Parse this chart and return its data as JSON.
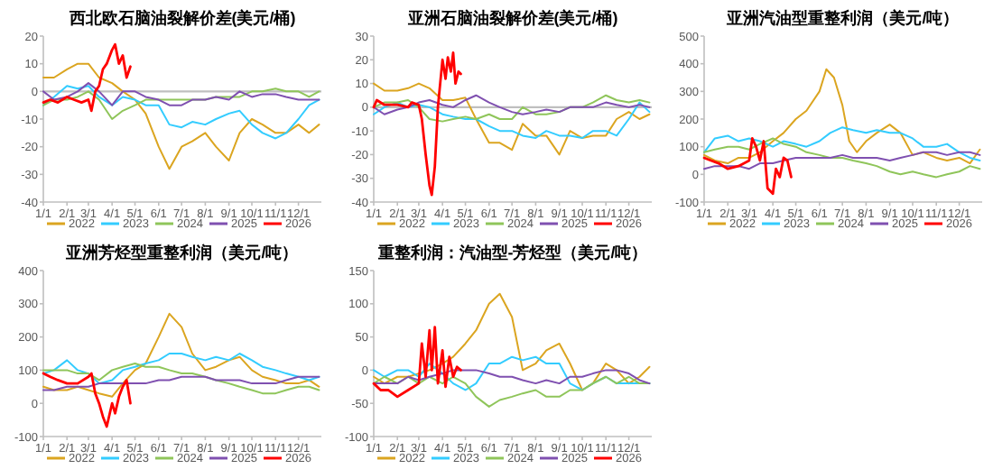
{
  "chart_data": [
    {
      "type": "line",
      "title": "西北欧石脑油裂解价差(美元/桶)",
      "legend": "bottom",
      "line_style": "solid",
      "x": [
        "--01-01",
        "--01-15",
        "--02-01",
        "--02-15",
        "--03-01",
        "--03-15",
        "--04-01",
        "--04-15",
        "--05-01",
        "--05-15",
        "--06-01",
        "--06-15",
        "--07-01",
        "--07-15",
        "--08-01",
        "--08-15",
        "--09-01",
        "--09-15",
        "--10-01",
        "--10-15",
        "--11-01",
        "--11-15",
        "--12-01",
        "--12-15",
        "--12-28"
      ],
      "xlim": [
        "--01-01",
        "--12-31"
      ],
      "xticks": [
        {
          "value": "--01-01",
          "label": "1/1"
        },
        {
          "value": "--02-01",
          "label": "2/1"
        },
        {
          "value": "--03-01",
          "label": "3/1"
        },
        {
          "value": "--04-01",
          "label": "4/1"
        },
        {
          "value": "--05-01",
          "label": "5/1"
        },
        {
          "value": "--06-01",
          "label": "6/1"
        },
        {
          "value": "--07-01",
          "label": "7/1"
        },
        {
          "value": "--08-01",
          "label": "8/1"
        },
        {
          "value": "--09-01",
          "label": "9/1"
        },
        {
          "value": "--10-01",
          "label": "10/1"
        },
        {
          "value": "--11-01",
          "label": "11/1"
        },
        {
          "value": "--12-01",
          "label": "12/1"
        }
      ],
      "ylim": [
        -40,
        20
      ],
      "yticks": [
        -40,
        -30,
        -20,
        -10,
        0,
        10,
        20
      ],
      "ref_lines": [
        {
          "axis": "y",
          "value": 0,
          "color": "#bfbfbf"
        }
      ],
      "series": [
        {
          "name": "2022",
          "color": "#dba520",
          "values": [
            5,
            5,
            8,
            10,
            10,
            5,
            3,
            0,
            -3,
            -8,
            -20,
            -28,
            -20,
            -18,
            -15,
            -20,
            -25,
            -15,
            -10,
            -12,
            -15,
            -15,
            -12,
            -15,
            -12
          ]
        },
        {
          "name": "2023",
          "color": "#33ccff",
          "values": [
            -5,
            -2,
            2,
            1,
            2,
            -2,
            -5,
            -2,
            -3,
            -5,
            -5,
            -12,
            -13,
            -11,
            -12,
            -10,
            -8,
            -7,
            -12,
            -15,
            -17,
            -15,
            -10,
            -5,
            -3
          ]
        },
        {
          "name": "2024",
          "color": "#8fc55a",
          "values": [
            -5,
            -3,
            -3,
            -2,
            0,
            -3,
            -10,
            -7,
            -5,
            -3,
            -3,
            -3,
            -3,
            -3,
            -3,
            -2,
            -2,
            -2,
            0,
            0,
            1,
            0,
            0,
            -2,
            0
          ]
        },
        {
          "name": "2025",
          "color": "#7f50b0",
          "values": [
            0,
            -3,
            -2,
            0,
            3,
            0,
            -5,
            0,
            0,
            -2,
            -3,
            -5,
            -5,
            -3,
            -3,
            -2,
            -3,
            0,
            -2,
            -1,
            -1,
            -2,
            -3,
            -3,
            -3
          ]
        },
        {
          "name": "2026",
          "color": "#ff0000",
          "x": [
            "--01-01",
            "--01-10",
            "--01-20",
            "--02-01",
            "--02-10",
            "--02-20",
            "--03-01",
            "--03-05",
            "--03-10",
            "--03-15",
            "--03-20",
            "--03-25",
            "--04-01",
            "--04-05",
            "--04-10",
            "--04-15",
            "--04-20",
            "--04-25"
          ],
          "values": [
            -4,
            -3,
            -4,
            -2,
            -3,
            -4,
            -3,
            -7,
            0,
            2,
            8,
            10,
            15,
            17,
            10,
            13,
            5,
            9
          ]
        }
      ]
    },
    {
      "type": "line",
      "title": "亚洲石脑油裂解价差(美元/桶)",
      "legend": "bottom",
      "line_style": "solid",
      "x": [
        "--01-01",
        "--01-15",
        "--02-01",
        "--02-15",
        "--03-01",
        "--03-15",
        "--04-01",
        "--04-15",
        "--05-01",
        "--05-15",
        "--06-01",
        "--06-15",
        "--07-01",
        "--07-15",
        "--08-01",
        "--08-15",
        "--09-01",
        "--09-15",
        "--10-01",
        "--10-15",
        "--11-01",
        "--11-15",
        "--12-01",
        "--12-15",
        "--12-28"
      ],
      "xlim": [
        "--01-01",
        "--12-31"
      ],
      "xticks": [
        {
          "value": "--01-01",
          "label": "1/1"
        },
        {
          "value": "--02-01",
          "label": "2/1"
        },
        {
          "value": "--03-01",
          "label": "3/1"
        },
        {
          "value": "--04-01",
          "label": "4/1"
        },
        {
          "value": "--05-01",
          "label": "5/1"
        },
        {
          "value": "--06-01",
          "label": "6/1"
        },
        {
          "value": "--07-01",
          "label": "7/1"
        },
        {
          "value": "--08-01",
          "label": "8/1"
        },
        {
          "value": "--09-01",
          "label": "9/1"
        },
        {
          "value": "--10-01",
          "label": "10/1"
        },
        {
          "value": "--11-01",
          "label": "11/1"
        },
        {
          "value": "--12-01",
          "label": "12/1"
        }
      ],
      "ylim": [
        -40,
        30
      ],
      "yticks": [
        -40,
        -30,
        -20,
        -10,
        0,
        10,
        20,
        30
      ],
      "ref_lines": [
        {
          "axis": "y",
          "value": 0,
          "color": "#bfbfbf"
        }
      ],
      "series": [
        {
          "name": "2022",
          "color": "#dba520",
          "values": [
            10,
            7,
            7,
            8,
            10,
            8,
            3,
            3,
            4,
            -5,
            -15,
            -15,
            -18,
            -7,
            -12,
            -12,
            -20,
            -10,
            -13,
            -12,
            -12,
            -5,
            -2,
            -5,
            -3
          ]
        },
        {
          "name": "2023",
          "color": "#33ccff",
          "values": [
            -3,
            0,
            2,
            0,
            1,
            0,
            -3,
            -4,
            -5,
            -5,
            -8,
            -10,
            -10,
            -12,
            -13,
            -10,
            -12,
            -12,
            -13,
            -10,
            -10,
            -12,
            -5,
            2,
            -2
          ]
        },
        {
          "name": "2024",
          "color": "#8fc55a",
          "values": [
            0,
            2,
            2,
            3,
            0,
            -5,
            -6,
            -5,
            -4,
            -5,
            -3,
            -5,
            -5,
            0,
            -3,
            -3,
            -2,
            0,
            0,
            2,
            5,
            3,
            2,
            3,
            2
          ]
        },
        {
          "name": "2025",
          "color": "#7f50b0",
          "values": [
            0,
            -3,
            -1,
            0,
            2,
            3,
            1,
            0,
            3,
            5,
            2,
            0,
            -2,
            -3,
            -2,
            -1,
            -2,
            0,
            0,
            0,
            2,
            1,
            0,
            1,
            0
          ]
        },
        {
          "name": "2026",
          "color": "#ff0000",
          "x": [
            "--01-01",
            "--01-05",
            "--01-15",
            "--02-01",
            "--02-15",
            "--02-20",
            "--03-01",
            "--03-05",
            "--03-10",
            "--03-15",
            "--03-18",
            "--03-22",
            "--03-26",
            "--04-01",
            "--04-05",
            "--04-08",
            "--04-12",
            "--04-15",
            "--04-18",
            "--04-22",
            "--04-25"
          ],
          "values": [
            0,
            3,
            1,
            1,
            0,
            2,
            1,
            -5,
            -20,
            -33,
            -37,
            -25,
            0,
            20,
            12,
            21,
            15,
            23,
            10,
            15,
            14
          ]
        }
      ]
    },
    {
      "type": "line",
      "title": "亚洲汽油型重整利润（美元/吨）",
      "legend": "bottom",
      "line_style": "solid",
      "x": [
        "--01-01",
        "--01-15",
        "--02-01",
        "--02-15",
        "--03-01",
        "--03-15",
        "--04-01",
        "--04-15",
        "--05-01",
        "--05-15",
        "--06-01",
        "--06-15",
        "--07-01",
        "--07-15",
        "--08-01",
        "--08-15",
        "--09-01",
        "--09-15",
        "--10-01",
        "--10-15",
        "--11-01",
        "--11-15",
        "--12-01",
        "--12-15",
        "--12-28"
      ],
      "xlim": [
        "--01-01",
        "--12-31"
      ],
      "xticks": [
        {
          "value": "--01-01",
          "label": "1/1"
        },
        {
          "value": "--02-01",
          "label": "2/1"
        },
        {
          "value": "--03-01",
          "label": "3/1"
        },
        {
          "value": "--04-01",
          "label": "4/1"
        },
        {
          "value": "--05-01",
          "label": "5/1"
        },
        {
          "value": "--06-01",
          "label": "6/1"
        },
        {
          "value": "--07-01",
          "label": "7/1"
        },
        {
          "value": "--08-01",
          "label": "8/1"
        },
        {
          "value": "--09-01",
          "label": "9/1"
        },
        {
          "value": "--10-01",
          "label": "10/1"
        },
        {
          "value": "--11-01",
          "label": "11/1"
        },
        {
          "value": "--12-01",
          "label": "12/1"
        }
      ],
      "ylim": [
        -100,
        500
      ],
      "yticks": [
        -100,
        0,
        100,
        200,
        300,
        400,
        500
      ],
      "series": [
        {
          "name": "2022",
          "color": "#dba520",
          "x": [
            "--01-01",
            "--01-15",
            "--02-01",
            "--02-15",
            "--03-01",
            "--03-15",
            "--04-01",
            "--04-15",
            "--05-01",
            "--05-15",
            "--06-01",
            "--06-10",
            "--06-20",
            "--07-01",
            "--07-10",
            "--07-20",
            "--08-01",
            "--08-15",
            "--09-01",
            "--09-15",
            "--10-01",
            "--10-15",
            "--11-01",
            "--11-15",
            "--12-01",
            "--12-15",
            "--12-28"
          ],
          "values": [
            70,
            50,
            40,
            60,
            60,
            80,
            120,
            150,
            200,
            230,
            300,
            380,
            350,
            250,
            120,
            80,
            120,
            150,
            180,
            150,
            70,
            80,
            60,
            50,
            60,
            40,
            90
          ]
        },
        {
          "name": "2023",
          "color": "#33ccff",
          "values": [
            80,
            130,
            140,
            120,
            130,
            120,
            100,
            120,
            110,
            100,
            120,
            150,
            170,
            160,
            150,
            160,
            150,
            150,
            130,
            100,
            100,
            110,
            80,
            60,
            50
          ]
        },
        {
          "name": "2024",
          "color": "#8fc55a",
          "values": [
            80,
            90,
            100,
            100,
            90,
            110,
            130,
            110,
            100,
            80,
            70,
            60,
            60,
            50,
            40,
            30,
            10,
            0,
            10,
            0,
            -10,
            0,
            10,
            30,
            20
          ]
        },
        {
          "name": "2025",
          "color": "#7f50b0",
          "values": [
            20,
            30,
            30,
            30,
            20,
            40,
            40,
            50,
            60,
            60,
            60,
            60,
            70,
            60,
            60,
            60,
            50,
            60,
            70,
            80,
            80,
            70,
            80,
            80,
            70
          ]
        },
        {
          "name": "2026",
          "color": "#ff0000",
          "x": [
            "--01-01",
            "--01-10",
            "--01-20",
            "--02-01",
            "--02-15",
            "--03-01",
            "--03-05",
            "--03-10",
            "--03-15",
            "--03-20",
            "--03-25",
            "--04-01",
            "--04-05",
            "--04-10",
            "--04-15",
            "--04-20",
            "--04-25"
          ],
          "values": [
            60,
            50,
            40,
            20,
            30,
            50,
            130,
            100,
            50,
            120,
            -50,
            -70,
            20,
            -10,
            60,
            50,
            -10
          ]
        }
      ]
    },
    {
      "type": "line",
      "title": "亚洲芳烃型重整利润（美元/吨）",
      "legend": "bottom",
      "line_style": "solid",
      "x": [
        "--01-01",
        "--01-15",
        "--02-01",
        "--02-15",
        "--03-01",
        "--03-15",
        "--04-01",
        "--04-15",
        "--05-01",
        "--05-15",
        "--06-01",
        "--06-15",
        "--07-01",
        "--07-15",
        "--08-01",
        "--08-15",
        "--09-01",
        "--09-15",
        "--10-01",
        "--10-15",
        "--11-01",
        "--11-15",
        "--12-01",
        "--12-15",
        "--12-28"
      ],
      "xlim": [
        "--01-01",
        "--12-31"
      ],
      "xticks": [
        {
          "value": "--01-01",
          "label": "1/1"
        },
        {
          "value": "--02-01",
          "label": "2/1"
        },
        {
          "value": "--03-01",
          "label": "3/1"
        },
        {
          "value": "--04-01",
          "label": "4/1"
        },
        {
          "value": "--05-01",
          "label": "5/1"
        },
        {
          "value": "--06-01",
          "label": "6/1"
        },
        {
          "value": "--07-01",
          "label": "7/1"
        },
        {
          "value": "--08-01",
          "label": "8/1"
        },
        {
          "value": "--09-01",
          "label": "9/1"
        },
        {
          "value": "--10-01",
          "label": "10/1"
        },
        {
          "value": "--11-01",
          "label": "11/1"
        },
        {
          "value": "--12-01",
          "label": "12/1"
        }
      ],
      "ylim": [
        -100,
        400
      ],
      "yticks": [
        -100,
        0,
        100,
        200,
        300,
        400
      ],
      "series": [
        {
          "name": "2022",
          "color": "#dba520",
          "values": [
            50,
            40,
            40,
            50,
            40,
            30,
            20,
            60,
            100,
            120,
            200,
            270,
            230,
            150,
            100,
            110,
            130,
            140,
            100,
            80,
            70,
            60,
            60,
            70,
            50
          ]
        },
        {
          "name": "2023",
          "color": "#33ccff",
          "values": [
            90,
            100,
            130,
            100,
            90,
            60,
            70,
            100,
            110,
            120,
            130,
            150,
            150,
            140,
            130,
            140,
            130,
            150,
            130,
            110,
            100,
            90,
            80,
            70,
            80
          ]
        },
        {
          "name": "2024",
          "color": "#8fc55a",
          "values": [
            100,
            100,
            100,
            90,
            90,
            70,
            100,
            110,
            120,
            110,
            110,
            100,
            90,
            90,
            80,
            70,
            60,
            50,
            40,
            30,
            30,
            40,
            50,
            50,
            40
          ]
        },
        {
          "name": "2025",
          "color": "#7f50b0",
          "values": [
            40,
            40,
            50,
            50,
            50,
            60,
            60,
            60,
            60,
            60,
            70,
            70,
            80,
            80,
            80,
            70,
            70,
            70,
            60,
            60,
            60,
            70,
            80,
            80,
            80
          ]
        },
        {
          "name": "2026",
          "color": "#ff0000",
          "x": [
            "--01-01",
            "--01-10",
            "--01-20",
            "--02-01",
            "--02-15",
            "--03-01",
            "--03-05",
            "--03-10",
            "--03-15",
            "--03-20",
            "--03-25",
            "--04-01",
            "--04-05",
            "--04-10",
            "--04-15",
            "--04-20",
            "--04-25"
          ],
          "values": [
            90,
            80,
            70,
            60,
            60,
            80,
            90,
            30,
            0,
            -40,
            -70,
            0,
            -30,
            20,
            50,
            70,
            0
          ]
        }
      ]
    },
    {
      "type": "line",
      "title": "重整利润：汽油型-芳烃型（美元/吨）",
      "legend": "bottom",
      "line_style": "solid",
      "x": [
        "--01-01",
        "--01-15",
        "--02-01",
        "--02-15",
        "--03-01",
        "--03-15",
        "--04-01",
        "--04-15",
        "--05-01",
        "--05-15",
        "--06-01",
        "--06-15",
        "--07-01",
        "--07-15",
        "--08-01",
        "--08-15",
        "--09-01",
        "--09-15",
        "--10-01",
        "--10-15",
        "--11-01",
        "--11-15",
        "--12-01",
        "--12-15",
        "--12-28"
      ],
      "xlim": [
        "--01-01",
        "--12-31"
      ],
      "xticks": [
        {
          "value": "--01-01",
          "label": "1/1"
        },
        {
          "value": "--02-01",
          "label": "2/1"
        },
        {
          "value": "--03-01",
          "label": "3/1"
        },
        {
          "value": "--04-01",
          "label": "4/1"
        },
        {
          "value": "--05-01",
          "label": "5/1"
        },
        {
          "value": "--06-01",
          "label": "6/1"
        },
        {
          "value": "--07-01",
          "label": "7/1"
        },
        {
          "value": "--08-01",
          "label": "8/1"
        },
        {
          "value": "--09-01",
          "label": "9/1"
        },
        {
          "value": "--10-01",
          "label": "10/1"
        },
        {
          "value": "--11-01",
          "label": "11/1"
        },
        {
          "value": "--12-01",
          "label": "12/1"
        }
      ],
      "ylim": [
        -100,
        150
      ],
      "yticks": [
        -100,
        -50,
        0,
        50,
        100,
        150
      ],
      "series": [
        {
          "name": "2022",
          "color": "#dba520",
          "values": [
            -10,
            -20,
            -10,
            -10,
            -5,
            0,
            10,
            20,
            40,
            60,
            100,
            115,
            80,
            0,
            10,
            30,
            40,
            10,
            -30,
            -20,
            10,
            0,
            -20,
            -10,
            5
          ]
        },
        {
          "name": "2023",
          "color": "#33ccff",
          "values": [
            0,
            -10,
            0,
            0,
            -10,
            10,
            -5,
            -20,
            -30,
            -20,
            10,
            10,
            20,
            15,
            20,
            10,
            10,
            -20,
            -30,
            -20,
            -10,
            -20,
            -20,
            -20,
            -20
          ]
        },
        {
          "name": "2024",
          "color": "#8fc55a",
          "values": [
            -20,
            -10,
            -20,
            -10,
            -20,
            -10,
            -20,
            -10,
            -20,
            -40,
            -55,
            -45,
            -40,
            -35,
            -30,
            -40,
            -40,
            -30,
            -30,
            -20,
            -10,
            -20,
            -10,
            -20,
            -20
          ]
        },
        {
          "name": "2025",
          "color": "#7f50b0",
          "values": [
            -20,
            -20,
            -20,
            -10,
            -15,
            -10,
            -5,
            0,
            0,
            0,
            -5,
            -10,
            -10,
            -15,
            -20,
            -15,
            -20,
            -10,
            -10,
            -5,
            0,
            0,
            -5,
            -15,
            -20
          ]
        },
        {
          "name": "2026",
          "color": "#ff0000",
          "x": [
            "--01-01",
            "--01-10",
            "--01-20",
            "--02-01",
            "--02-15",
            "--03-01",
            "--03-05",
            "--03-10",
            "--03-15",
            "--03-18",
            "--03-22",
            "--03-26",
            "--04-01",
            "--04-05",
            "--04-10",
            "--04-15",
            "--04-20",
            "--04-25"
          ],
          "values": [
            -20,
            -30,
            -30,
            -40,
            -30,
            -20,
            40,
            -10,
            60,
            0,
            65,
            -20,
            30,
            -25,
            20,
            -10,
            5,
            0
          ]
        }
      ]
    }
  ]
}
